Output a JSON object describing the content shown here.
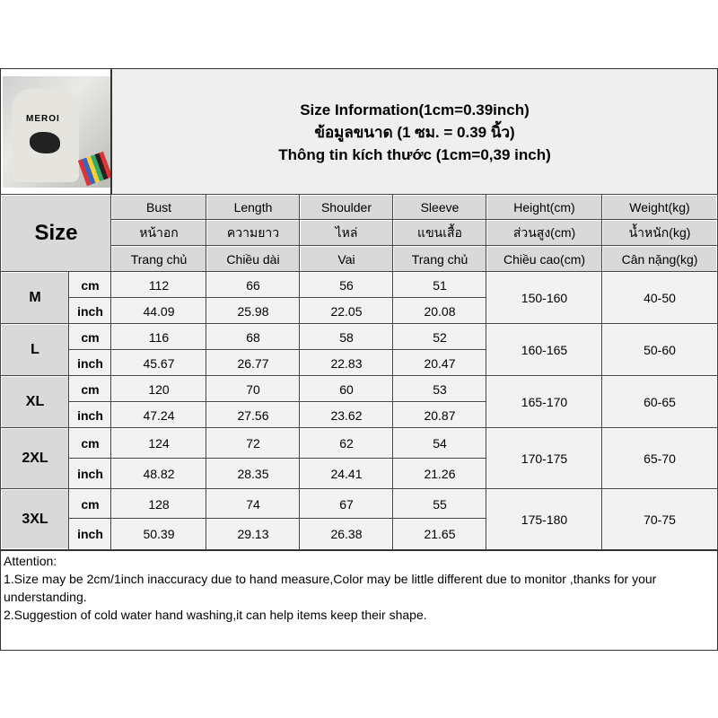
{
  "title": {
    "line1": "Size Information(1cm=0.39inch)",
    "line2": "ข้อมูลขนาด (1 ซม. = 0.39 นิ้ว)",
    "line3": "Thông tin kích thước (1cm=0,39 inch)"
  },
  "product_photo": {
    "logo_text": "MEROI"
  },
  "size_label": "Size",
  "columns": [
    {
      "en": "Bust",
      "th": "หน้าอก",
      "vi": "Trang chủ"
    },
    {
      "en": "Length",
      "th": "ความยาว",
      "vi": "Chiều dài"
    },
    {
      "en": "Shoulder",
      "th": "ไหล่",
      "vi": "Vai"
    },
    {
      "en": "Sleeve",
      "th": "แขนเสื้อ",
      "vi": "Trang chủ"
    },
    {
      "en": "Height(cm)",
      "th": "ส่วนสูง(cm)",
      "vi": "Chiều cao(cm)"
    },
    {
      "en": "Weight(kg)",
      "th": "น้ำหนัก(kg)",
      "vi": "Cân nặng(kg)"
    }
  ],
  "rows": [
    {
      "size": "M",
      "cm_label": "cm",
      "inch_label": "inch",
      "cm": [
        "112",
        "66",
        "56",
        "51"
      ],
      "inch": [
        "44.09",
        "25.98",
        "22.05",
        "20.08"
      ],
      "height": "150-160",
      "weight": "40-50"
    },
    {
      "size": "L",
      "cm_label": "cm",
      "inch_label": "inch",
      "cm": [
        "116",
        "68",
        "58",
        "52"
      ],
      "inch": [
        "45.67",
        "26.77",
        "22.83",
        "20.47"
      ],
      "height": "160-165",
      "weight": "50-60"
    },
    {
      "size": "XL",
      "cm_label": "cm",
      "inch_label": "inch",
      "cm": [
        "120",
        "70",
        "60",
        "53"
      ],
      "inch": [
        "47.24",
        "27.56",
        "23.62",
        "20.87"
      ],
      "height": "165-170",
      "weight": "60-65"
    },
    {
      "size": "2XL",
      "cm_label": "cm",
      "inch_label": "inch",
      "cm": [
        "124",
        "72",
        "62",
        "54"
      ],
      "inch": [
        "48.82",
        "28.35",
        "24.41",
        "21.26"
      ],
      "height": "170-175",
      "weight": "65-70"
    },
    {
      "size": "3XL",
      "cm_label": "cm",
      "inch_label": "inch",
      "cm": [
        "128",
        "74",
        "67",
        "55"
      ],
      "inch": [
        "50.39",
        "29.13",
        "26.38",
        "21.65"
      ],
      "height": "175-180",
      "weight": "70-75"
    }
  ],
  "attention": {
    "heading": "Attention:",
    "notes": [
      "1.Size may be 2cm/1inch inaccuracy due to hand measure,Color may be little different due to monitor ,thanks for your understanding.",
      "2.Suggestion of cold water hand washing,it can help items keep their shape."
    ]
  }
}
